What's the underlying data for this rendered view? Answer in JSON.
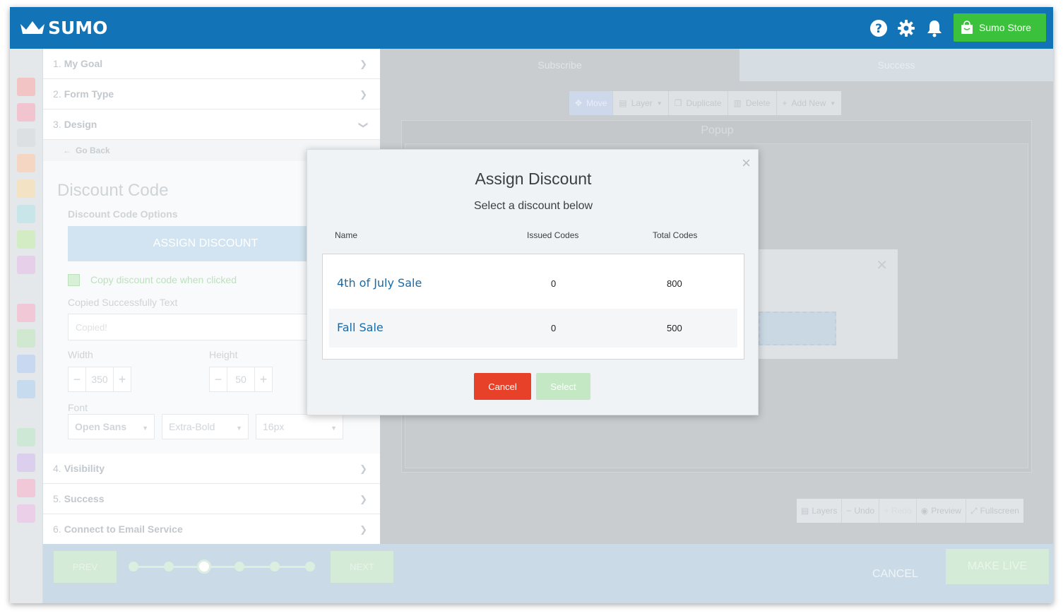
{
  "header": {
    "logo_text": "SUMO",
    "store_button": "Sumo Store",
    "icons": [
      "help-icon",
      "gear-icon",
      "bell-icon"
    ],
    "brand_color": "#1273b6",
    "store_color": "#3cc13c"
  },
  "steps": [
    {
      "num": "1.",
      "label": "My Goal"
    },
    {
      "num": "2.",
      "label": "Form Type"
    },
    {
      "num": "3.",
      "label": "Design"
    },
    {
      "num": "4.",
      "label": "Visibility"
    },
    {
      "num": "5.",
      "label": "Success"
    },
    {
      "num": "6.",
      "label": "Connect to Email Service"
    }
  ],
  "design": {
    "go_back": "Go Back",
    "title": "Discount Code",
    "options_heading": "Discount Code Options",
    "assign_button": "ASSIGN DISCOUNT",
    "copy_label": "Copy discount code when clicked",
    "copied_label": "Copied Successfully Text",
    "copied_placeholder": "Copied!",
    "width_label": "Width",
    "width_value": "350",
    "height_label": "Height",
    "height_value": "50",
    "font_label": "Font",
    "font_family": "Open Sans",
    "font_weight": "Extra-Bold",
    "font_size": "16px"
  },
  "preview": {
    "tab_subscribe": "Subscribe",
    "tab_success": "Success",
    "toolbar": {
      "move": "Move",
      "layer": "Layer",
      "duplicate": "Duplicate",
      "delete": "Delete",
      "add_new": "Add New"
    },
    "canvas_title": "Popup",
    "bottom_tools": {
      "layers": "Layers",
      "undo": "Undo",
      "redo": "Redo",
      "preview": "Preview",
      "fullscreen": "Fullscreen"
    }
  },
  "footer": {
    "prev": "PREV",
    "next": "NEXT",
    "cancel": "CANCEL",
    "make_live": "MAKE LIVE",
    "current_step": 3,
    "total_steps": 6
  },
  "modal": {
    "title": "Assign Discount",
    "subtitle": "Select a discount below",
    "columns": {
      "name": "Name",
      "issued": "Issued Codes",
      "total": "Total Codes"
    },
    "rows": [
      {
        "name": "4th of July Sale",
        "issued": "0",
        "total": "800"
      },
      {
        "name": "Fall Sale",
        "issued": "0",
        "total": "500"
      }
    ],
    "cancel": "Cancel",
    "select": "Select",
    "cancel_color": "#e8412a"
  }
}
